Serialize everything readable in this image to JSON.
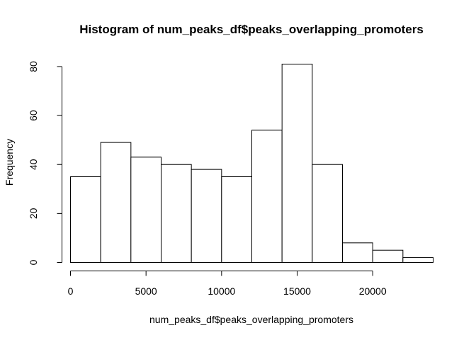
{
  "chart_data": {
    "type": "bar",
    "title": "Histogram of num_peaks_df$peaks_overlapping_promoters",
    "xlabel": "num_peaks_df$peaks_overlapping_promoters",
    "ylabel": "Frequency",
    "bins": [
      {
        "start": 0,
        "end": 2000,
        "count": 35
      },
      {
        "start": 2000,
        "end": 4000,
        "count": 49
      },
      {
        "start": 4000,
        "end": 6000,
        "count": 43
      },
      {
        "start": 6000,
        "end": 8000,
        "count": 40
      },
      {
        "start": 8000,
        "end": 10000,
        "count": 38
      },
      {
        "start": 10000,
        "end": 12000,
        "count": 35
      },
      {
        "start": 12000,
        "end": 14000,
        "count": 54
      },
      {
        "start": 14000,
        "end": 16000,
        "count": 81
      },
      {
        "start": 16000,
        "end": 18000,
        "count": 40
      },
      {
        "start": 18000,
        "end": 20000,
        "count": 8
      },
      {
        "start": 20000,
        "end": 22000,
        "count": 5
      },
      {
        "start": 22000,
        "end": 24000,
        "count": 2
      }
    ],
    "x_ticks": [
      0,
      5000,
      10000,
      15000,
      20000
    ],
    "x_tick_labels": [
      "0",
      "5000",
      "10000",
      "15000",
      "20000"
    ],
    "y_ticks": [
      0,
      20,
      40,
      60,
      80
    ],
    "y_tick_labels": [
      "0",
      "20",
      "40",
      "60",
      "80"
    ],
    "xlim": [
      0,
      24000
    ],
    "ylim": [
      0,
      81
    ],
    "grid": false,
    "legend": "none"
  }
}
